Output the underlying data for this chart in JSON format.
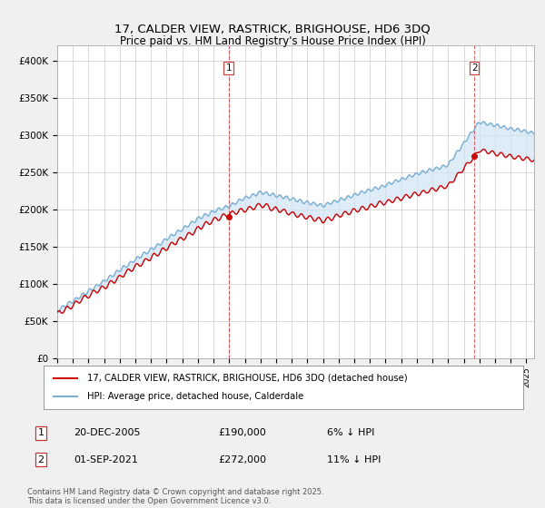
{
  "title": "17, CALDER VIEW, RASTRICK, BRIGHOUSE, HD6 3DQ",
  "subtitle": "Price paid vs. HM Land Registry's House Price Index (HPI)",
  "xlim_start": 1995.0,
  "xlim_end": 2025.5,
  "ylim_min": 0,
  "ylim_max": 420000,
  "yticks": [
    0,
    50000,
    100000,
    150000,
    200000,
    250000,
    300000,
    350000,
    400000
  ],
  "ytick_labels": [
    "£0",
    "£50K",
    "£100K",
    "£150K",
    "£200K",
    "£250K",
    "£300K",
    "£350K",
    "£400K"
  ],
  "hpi_color": "#7aafd4",
  "hpi_fill_color": "#d0e4f5",
  "price_color": "#cc0000",
  "vline_color": "#cc0000",
  "marker1_x": 2005.97,
  "marker1_y": 190000,
  "marker1_label": "1",
  "marker2_x": 2021.67,
  "marker2_y": 272000,
  "marker2_label": "2",
  "legend_line1": "17, CALDER VIEW, RASTRICK, BRIGHOUSE, HD6 3DQ (detached house)",
  "legend_line2": "HPI: Average price, detached house, Calderdale",
  "annotation1_num": "1",
  "annotation1_date": "20-DEC-2005",
  "annotation1_price": "£190,000",
  "annotation1_pct": "6% ↓ HPI",
  "annotation2_num": "2",
  "annotation2_date": "01-SEP-2021",
  "annotation2_price": "£272,000",
  "annotation2_pct": "11% ↓ HPI",
  "footer": "Contains HM Land Registry data © Crown copyright and database right 2025.\nThis data is licensed under the Open Government Licence v3.0.",
  "bg_color": "#f0f0f0",
  "plot_bg_color": "#ffffff"
}
